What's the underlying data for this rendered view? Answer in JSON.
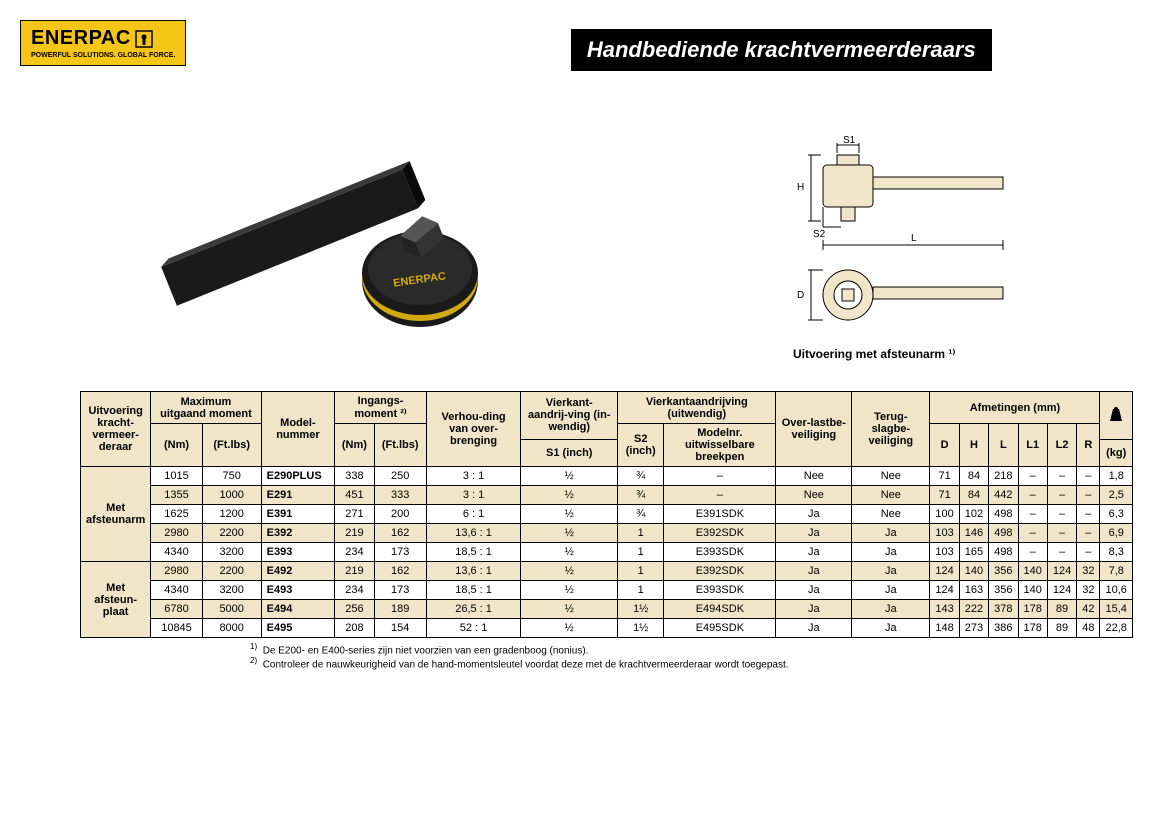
{
  "logo": {
    "name": "ENERPAC",
    "tagline": "POWERFUL SOLUTIONS. GLOBAL FORCE."
  },
  "title": "Handbediende krachtvermeerderaars",
  "diagram_caption": "Uitvoering met afsteunarm ¹⁾",
  "diagram_labels": {
    "s1": "S1",
    "s2": "S2",
    "h": "H",
    "l": "L",
    "d": "D"
  },
  "colors": {
    "brand_yellow": "#f5c518",
    "header_bg": "#f0e5c8",
    "black": "#000000"
  },
  "table": {
    "headers": {
      "uitvoering": "Uitvoering kracht-vermeer-deraar",
      "max_moment": "Maximum uitgaand moment",
      "model": "Model-nummer",
      "ingangs": "Ingangs-moment ²⁾",
      "verhouding": "Verhou-ding van over-brenging",
      "vierkant_in": "Vierkant-aandrij-ving (in-wendig)",
      "vierkant_uit": "Vierkantaandrijving (uitwendig)",
      "overlast": "Over-lastbe-veiliging",
      "terugslag": "Terug-slagbe-veiliging",
      "afmetingen": "Afmetingen (mm)",
      "nm": "(Nm)",
      "ftlbs": "(Ft.lbs)",
      "s1": "S1 (inch)",
      "s2": "S2 (inch)",
      "modelnr": "Modelnr. uitwisselbare breekpen",
      "d": "D",
      "h": "H",
      "l": "L",
      "l1": "L1",
      "l2": "L2",
      "r": "R",
      "kg": "(kg)"
    },
    "groups": [
      {
        "label": "Met afsteunarm",
        "rows": [
          {
            "nm": "1015",
            "ftlbs": "750",
            "model": "E290PLUS",
            "in_nm": "338",
            "in_ft": "250",
            "ratio": "3 : 1",
            "s1": "½",
            "s2": "¾",
            "pen": "–",
            "over": "Nee",
            "terug": "Nee",
            "d": "71",
            "h": "84",
            "l": "218",
            "l1": "–",
            "l2": "–",
            "r": "–",
            "kg": "1,8",
            "alt": false
          },
          {
            "nm": "1355",
            "ftlbs": "1000",
            "model": "E291",
            "in_nm": "451",
            "in_ft": "333",
            "ratio": "3 : 1",
            "s1": "½",
            "s2": "¾",
            "pen": "–",
            "over": "Nee",
            "terug": "Nee",
            "d": "71",
            "h": "84",
            "l": "442",
            "l1": "–",
            "l2": "–",
            "r": "–",
            "kg": "2,5",
            "alt": true
          },
          {
            "nm": "1625",
            "ftlbs": "1200",
            "model": "E391",
            "in_nm": "271",
            "in_ft": "200",
            "ratio": "6 : 1",
            "s1": "½",
            "s2": "¾",
            "pen": "E391SDK",
            "over": "Ja",
            "terug": "Nee",
            "d": "100",
            "h": "102",
            "l": "498",
            "l1": "–",
            "l2": "–",
            "r": "–",
            "kg": "6,3",
            "alt": false
          },
          {
            "nm": "2980",
            "ftlbs": "2200",
            "model": "E392",
            "in_nm": "219",
            "in_ft": "162",
            "ratio": "13,6 : 1",
            "s1": "½",
            "s2": "1",
            "pen": "E392SDK",
            "over": "Ja",
            "terug": "Ja",
            "d": "103",
            "h": "146",
            "l": "498",
            "l1": "–",
            "l2": "–",
            "r": "–",
            "kg": "6,9",
            "alt": true
          },
          {
            "nm": "4340",
            "ftlbs": "3200",
            "model": "E393",
            "in_nm": "234",
            "in_ft": "173",
            "ratio": "18,5 : 1",
            "s1": "½",
            "s2": "1",
            "pen": "E393SDK",
            "over": "Ja",
            "terug": "Ja",
            "d": "103",
            "h": "165",
            "l": "498",
            "l1": "–",
            "l2": "–",
            "r": "–",
            "kg": "8,3",
            "alt": false
          }
        ]
      },
      {
        "label": "Met afsteun-plaat",
        "rows": [
          {
            "nm": "2980",
            "ftlbs": "2200",
            "model": "E492",
            "in_nm": "219",
            "in_ft": "162",
            "ratio": "13,6 : 1",
            "s1": "½",
            "s2": "1",
            "pen": "E392SDK",
            "over": "Ja",
            "terug": "Ja",
            "d": "124",
            "h": "140",
            "l": "356",
            "l1": "140",
            "l2": "124",
            "r": "32",
            "kg": "7,8",
            "alt": true
          },
          {
            "nm": "4340",
            "ftlbs": "3200",
            "model": "E493",
            "in_nm": "234",
            "in_ft": "173",
            "ratio": "18,5 : 1",
            "s1": "½",
            "s2": "1",
            "pen": "E393SDK",
            "over": "Ja",
            "terug": "Ja",
            "d": "124",
            "h": "163",
            "l": "356",
            "l1": "140",
            "l2": "124",
            "r": "32",
            "kg": "10,6",
            "alt": false
          },
          {
            "nm": "6780",
            "ftlbs": "5000",
            "model": "E494",
            "in_nm": "256",
            "in_ft": "189",
            "ratio": "26,5 : 1",
            "s1": "½",
            "s2": "1½",
            "pen": "E494SDK",
            "over": "Ja",
            "terug": "Ja",
            "d": "143",
            "h": "222",
            "l": "378",
            "l1": "178",
            "l2": "89",
            "r": "42",
            "kg": "15,4",
            "alt": true
          },
          {
            "nm": "10845",
            "ftlbs": "8000",
            "model": "E495",
            "in_nm": "208",
            "in_ft": "154",
            "ratio": "52 : 1",
            "s1": "½",
            "s2": "1½",
            "pen": "E495SDK",
            "over": "Ja",
            "terug": "Ja",
            "d": "148",
            "h": "273",
            "l": "386",
            "l1": "178",
            "l2": "89",
            "r": "48",
            "kg": "22,8",
            "alt": false
          }
        ]
      }
    ]
  },
  "footnotes": {
    "f1": "De E200- en E400-series zijn niet voorzien van een gradenboog (nonius).",
    "f2": "Controleer de nauwkeurigheid van de hand-momentsleutel voordat deze met de krachtvermeerderaar wordt toegepast."
  }
}
